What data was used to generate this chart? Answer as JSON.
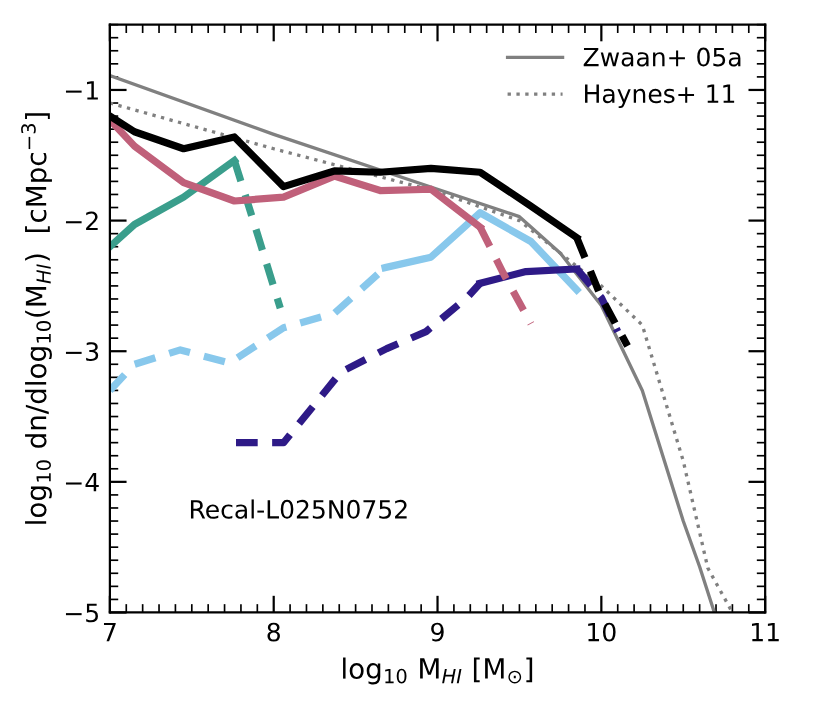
{
  "chart_data": {
    "type": "line",
    "xlabel": "log$_{10}$ M$_{HI}$ [M$_{⊙}$]",
    "ylabel": "log$_{10}$ dn/dlog$_{10}$(M$_{HI}$)  [cMpc$^{−3}$]",
    "xlim": [
      7,
      11
    ],
    "ylim": [
      -5,
      -0.5
    ],
    "xticks": [
      7,
      8,
      9,
      10,
      11
    ],
    "yticks": [
      -5,
      -4,
      -3,
      -2,
      -1
    ],
    "grid": false,
    "legend": "top right",
    "marker": "none",
    "annotations": [
      "Recal-L025N0752"
    ],
    "series": [
      {
        "name": "Zwaan+ 05a",
        "color": "#808080",
        "line_style": "solid",
        "x": [
          7,
          8,
          9,
          9.5,
          9.75,
          10,
          10.25,
          10.5,
          10.6,
          10.69
        ],
        "values": [
          -0.89,
          -1.34,
          -1.76,
          -1.97,
          -2.25,
          -2.65,
          -3.3,
          -4.3,
          -4.65,
          -5.0
        ]
      },
      {
        "name": "Haynes+ 11",
        "color": "#808080",
        "line_style": "dotted",
        "x": [
          7,
          8,
          9,
          9.5,
          10,
          10.25,
          10.5,
          10.65,
          10.8
        ],
        "values": [
          -1.1,
          -1.45,
          -1.78,
          -2.0,
          -2.5,
          -2.8,
          -3.84,
          -4.66,
          -5.0
        ]
      },
      {
        "color": "#3a9e8c",
        "line_style": "solid",
        "x": [
          7,
          7.15,
          7.45,
          7.76
        ],
        "values": [
          -2.2,
          -2.03,
          -1.82,
          -1.54
        ]
      },
      {
        "color": "#3a9e8c",
        "line_style": "dashed",
        "x": [
          7.76,
          7.9,
          8.04
        ],
        "values": [
          -1.54,
          -2.1,
          -2.67
        ]
      },
      {
        "color": "#88c8ec",
        "line_style": "dashed",
        "x": [
          7,
          7.15,
          7.43,
          7.73,
          8.06,
          8.37,
          8.68
        ],
        "values": [
          -3.3,
          -3.1,
          -2.99,
          -3.09,
          -2.82,
          -2.71,
          -2.36
        ]
      },
      {
        "color": "#88c8ec",
        "line_style": "solid",
        "x": [
          8.68,
          8.96,
          9.26,
          9.57,
          9.85
        ],
        "values": [
          -2.36,
          -2.28,
          -1.94,
          -2.16,
          -2.53
        ]
      },
      {
        "color": "#2e1a87",
        "line_style": "dashed",
        "x": [
          7.77,
          8.06,
          8.41,
          8.69,
          8.93,
          9.18,
          9.26
        ],
        "values": [
          -3.7,
          -3.7,
          -3.16,
          -2.98,
          -2.85,
          -2.59,
          -2.48
        ]
      },
      {
        "color": "#2e1a87",
        "line_style": "solid",
        "x": [
          9.26,
          9.54,
          9.85
        ],
        "values": [
          -2.48,
          -2.39,
          -2.37
        ]
      },
      {
        "color": "#2e1a87",
        "line_style": "dashed",
        "x": [
          9.85,
          10.0,
          10.1
        ],
        "values": [
          -2.37,
          -2.59,
          -2.85
        ]
      },
      {
        "color": "#c0607a",
        "line_style": "solid",
        "x": [
          7,
          7.15,
          7.45,
          7.76,
          8.06,
          8.37,
          8.65,
          8.96,
          9.26
        ],
        "values": [
          -1.23,
          -1.43,
          -1.71,
          -1.85,
          -1.82,
          -1.66,
          -1.77,
          -1.76,
          -2.05
        ]
      },
      {
        "color": "#c0607a",
        "line_style": "dashed",
        "x": [
          9.26,
          9.4,
          9.57
        ],
        "values": [
          -2.05,
          -2.4,
          -2.79
        ]
      },
      {
        "color": "#000000",
        "line_style": "solid",
        "x": [
          7,
          7.15,
          7.45,
          7.76,
          8.06,
          8.37,
          8.65,
          8.96,
          9.26,
          9.56,
          9.85
        ],
        "values": [
          -1.2,
          -1.32,
          -1.45,
          -1.36,
          -1.74,
          -1.62,
          -1.63,
          -1.6,
          -1.63,
          -1.88,
          -2.13
        ]
      },
      {
        "color": "#000000",
        "line_style": "dashed",
        "x": [
          9.85,
          10.0,
          10.16
        ],
        "values": [
          -2.13,
          -2.59,
          -2.96
        ]
      }
    ]
  }
}
